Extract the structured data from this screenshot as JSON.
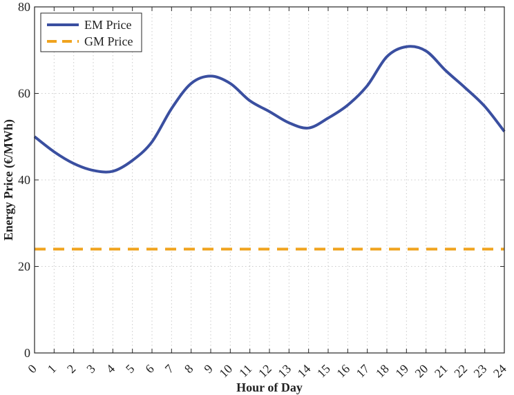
{
  "chart_data": {
    "type": "line",
    "title": "",
    "xlabel": "Hour of Day",
    "ylabel": "Energy Price (€/MWh)",
    "xlim": [
      0,
      24
    ],
    "ylim": [
      0,
      80
    ],
    "x_ticks": [
      0,
      1,
      2,
      3,
      4,
      5,
      6,
      7,
      8,
      9,
      10,
      11,
      12,
      13,
      14,
      15,
      16,
      17,
      18,
      19,
      20,
      21,
      22,
      23,
      24
    ],
    "x_tick_labels": [
      "0",
      "1",
      "2",
      "3",
      "4",
      "5",
      "6",
      "7",
      "8",
      "9",
      "10",
      "11",
      "12",
      "13",
      "14",
      "15",
      "16",
      "17",
      "18",
      "19",
      "20",
      "21",
      "22",
      "23",
      "24"
    ],
    "y_ticks": [
      0,
      20,
      40,
      60,
      80
    ],
    "y_tick_labels": [
      "0",
      "20",
      "40",
      "60",
      "80"
    ],
    "grid": true,
    "legend_position": "top-left",
    "series": [
      {
        "name": "EM Price",
        "color": "#3a4fa0",
        "style": "solid",
        "x": [
          0,
          1,
          2,
          3,
          4,
          5,
          6,
          7,
          8,
          9,
          10,
          11,
          12,
          13,
          14,
          15,
          16,
          17,
          18,
          19,
          20,
          21,
          22,
          23,
          24
        ],
        "values": [
          50,
          46.5,
          43.8,
          42.2,
          42,
          44.5,
          48.8,
          56.5,
          62.3,
          64,
          62.3,
          58.3,
          55.8,
          53.2,
          52,
          54.3,
          57.3,
          61.8,
          68.5,
          70.8,
          69.8,
          65.3,
          61.3,
          57,
          51.2
        ]
      },
      {
        "name": "GM Price",
        "color": "#f0a31e",
        "style": "dashed",
        "x": [
          0,
          24
        ],
        "values": [
          24,
          24
        ]
      }
    ]
  }
}
